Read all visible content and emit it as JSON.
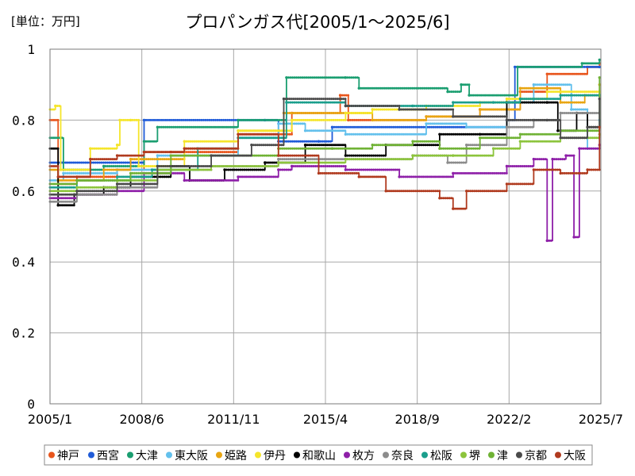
{
  "chart_data": {
    "type": "line",
    "title": "プロパンガス代[2005/1～2025/6]",
    "unit_label": "[単位：万円]",
    "xlabel": "",
    "ylabel": "",
    "ylim": [
      0,
      1
    ],
    "y_ticks": [
      "0",
      "0.2",
      "0.4",
      "0.6",
      "0.8",
      "1"
    ],
    "x_ticks": [
      "2005/1",
      "2008/6",
      "2011/11",
      "2015/4",
      "2018/9",
      "2022/2",
      "2025/7"
    ],
    "grid": true,
    "legend_position": "bottom",
    "series": [
      {
        "name": "神戸",
        "color": "#e8551c",
        "points": [
          [
            2005.0,
            0.8
          ],
          [
            2005.3,
            0.62
          ],
          [
            2006.0,
            0.64
          ],
          [
            2007.5,
            0.66
          ],
          [
            2008.5,
            0.71
          ],
          [
            2009.5,
            0.71
          ],
          [
            2012.0,
            0.76
          ],
          [
            2014.0,
            0.82
          ],
          [
            2015.8,
            0.87
          ],
          [
            2016.1,
            0.8
          ],
          [
            2019.0,
            0.81
          ],
          [
            2021.0,
            0.83
          ],
          [
            2022.5,
            0.88
          ],
          [
            2023.5,
            0.93
          ],
          [
            2025.0,
            0.95
          ],
          [
            2025.45,
            0.96
          ]
        ]
      },
      {
        "name": "西宮",
        "color": "#1f5bd8",
        "points": [
          [
            2005.0,
            0.68
          ],
          [
            2008.3,
            0.68
          ],
          [
            2008.5,
            0.8
          ],
          [
            2013.0,
            0.8
          ],
          [
            2013.5,
            0.74
          ],
          [
            2015.0,
            0.74
          ],
          [
            2015.5,
            0.78
          ],
          [
            2022.0,
            0.8
          ],
          [
            2022.3,
            0.95
          ],
          [
            2025.45,
            0.95
          ]
        ]
      },
      {
        "name": "大津",
        "color": "#1a9e70",
        "points": [
          [
            2005.0,
            0.75
          ],
          [
            2005.5,
            0.66
          ],
          [
            2007.0,
            0.67
          ],
          [
            2008.5,
            0.74
          ],
          [
            2009.0,
            0.78
          ],
          [
            2012.0,
            0.8
          ],
          [
            2013.8,
            0.92
          ],
          [
            2016.0,
            0.92
          ],
          [
            2016.5,
            0.89
          ],
          [
            2019.8,
            0.88
          ],
          [
            2020.3,
            0.9
          ],
          [
            2020.6,
            0.87
          ],
          [
            2022.4,
            0.95
          ],
          [
            2024.8,
            0.96
          ],
          [
            2025.45,
            0.97
          ]
        ]
      },
      {
        "name": "東大阪",
        "color": "#63c0ec",
        "points": [
          [
            2005.0,
            0.63
          ],
          [
            2005.5,
            0.65
          ],
          [
            2007.5,
            0.66
          ],
          [
            2009.0,
            0.7
          ],
          [
            2012.0,
            0.75
          ],
          [
            2013.5,
            0.79
          ],
          [
            2014.5,
            0.77
          ],
          [
            2016.0,
            0.76
          ],
          [
            2019.0,
            0.79
          ],
          [
            2020.5,
            0.78
          ],
          [
            2022.0,
            0.85
          ],
          [
            2023.0,
            0.9
          ],
          [
            2024.4,
            0.83
          ],
          [
            2025.0,
            0.72
          ],
          [
            2025.45,
            0.8
          ]
        ]
      },
      {
        "name": "姫路",
        "color": "#e8a512",
        "points": [
          [
            2005.0,
            0.66
          ],
          [
            2005.3,
            0.63
          ],
          [
            2007.0,
            0.66
          ],
          [
            2008.0,
            0.69
          ],
          [
            2010.0,
            0.72
          ],
          [
            2012.0,
            0.77
          ],
          [
            2013.7,
            0.82
          ],
          [
            2016.0,
            0.82
          ],
          [
            2017.0,
            0.8
          ],
          [
            2019.0,
            0.81
          ],
          [
            2021.0,
            0.83
          ],
          [
            2022.5,
            0.89
          ],
          [
            2024.0,
            0.85
          ],
          [
            2024.9,
            0.87
          ],
          [
            2025.45,
            0.9
          ]
        ]
      },
      {
        "name": "伊丹",
        "color": "#f5e52a",
        "points": [
          [
            2005.0,
            0.83
          ],
          [
            2005.2,
            0.84
          ],
          [
            2005.4,
            0.66
          ],
          [
            2006.5,
            0.72
          ],
          [
            2007.5,
            0.73
          ],
          [
            2007.6,
            0.8
          ],
          [
            2008.0,
            0.8
          ],
          [
            2008.3,
            0.67
          ],
          [
            2010.0,
            0.74
          ],
          [
            2012.0,
            0.77
          ],
          [
            2014.0,
            0.8
          ],
          [
            2016.0,
            0.82
          ],
          [
            2017.0,
            0.83
          ],
          [
            2019.0,
            0.84
          ],
          [
            2021.0,
            0.85
          ],
          [
            2022.0,
            0.86
          ],
          [
            2023.5,
            0.88
          ],
          [
            2025.45,
            0.88
          ]
        ]
      },
      {
        "name": "和歌山",
        "color": "#000000",
        "points": [
          [
            2005.0,
            0.72
          ],
          [
            2005.3,
            0.56
          ],
          [
            2005.9,
            0.59
          ],
          [
            2007.0,
            0.61
          ],
          [
            2008.0,
            0.64
          ],
          [
            2009.5,
            0.67
          ],
          [
            2010.2,
            0.63
          ],
          [
            2011.5,
            0.66
          ],
          [
            2013.0,
            0.68
          ],
          [
            2014.5,
            0.73
          ],
          [
            2016.0,
            0.7
          ],
          [
            2017.5,
            0.73
          ],
          [
            2019.5,
            0.76
          ],
          [
            2021.0,
            0.76
          ],
          [
            2022.0,
            0.85
          ],
          [
            2023.5,
            0.85
          ],
          [
            2023.9,
            0.77
          ],
          [
            2024.6,
            0.82
          ],
          [
            2025.0,
            0.78
          ],
          [
            2025.45,
            0.87
          ]
        ]
      },
      {
        "name": "枚方",
        "color": "#8e1fa8",
        "points": [
          [
            2005.0,
            0.58
          ],
          [
            2006.0,
            0.59
          ],
          [
            2007.5,
            0.6
          ],
          [
            2008.5,
            0.65
          ],
          [
            2010.0,
            0.63
          ],
          [
            2012.0,
            0.64
          ],
          [
            2013.5,
            0.66
          ],
          [
            2014.0,
            0.67
          ],
          [
            2016.0,
            0.66
          ],
          [
            2018.0,
            0.64
          ],
          [
            2020.0,
            0.65
          ],
          [
            2022.0,
            0.67
          ],
          [
            2023.0,
            0.69
          ],
          [
            2023.5,
            0.46
          ],
          [
            2023.7,
            0.69
          ],
          [
            2024.2,
            0.7
          ],
          [
            2024.5,
            0.47
          ],
          [
            2024.7,
            0.72
          ],
          [
            2025.45,
            0.73
          ]
        ]
      },
      {
        "name": "奈良",
        "color": "#8c8c8c",
        "points": [
          [
            2005.0,
            0.57
          ],
          [
            2006.0,
            0.59
          ],
          [
            2007.5,
            0.61
          ],
          [
            2009.0,
            0.66
          ],
          [
            2011.0,
            0.67
          ],
          [
            2013.5,
            0.69
          ],
          [
            2016.0,
            0.69
          ],
          [
            2018.5,
            0.7
          ],
          [
            2019.8,
            0.68
          ],
          [
            2020.5,
            0.73
          ],
          [
            2022.0,
            0.78
          ],
          [
            2023.0,
            0.8
          ],
          [
            2024.0,
            0.82
          ],
          [
            2025.45,
            0.82
          ]
        ]
      },
      {
        "name": "松阪",
        "color": "#1a9e8c",
        "points": [
          [
            2005.0,
            0.61
          ],
          [
            2006.0,
            0.63
          ],
          [
            2007.5,
            0.64
          ],
          [
            2008.8,
            0.66
          ],
          [
            2010.5,
            0.72
          ],
          [
            2012.0,
            0.75
          ],
          [
            2013.8,
            0.85
          ],
          [
            2016.0,
            0.84
          ],
          [
            2018.5,
            0.84
          ],
          [
            2020.0,
            0.85
          ],
          [
            2021.5,
            0.85
          ],
          [
            2022.5,
            0.86
          ],
          [
            2024.0,
            0.87
          ],
          [
            2025.45,
            0.87
          ]
        ]
      },
      {
        "name": "堺",
        "color": "#8cc43c",
        "points": [
          [
            2005.0,
            0.6
          ],
          [
            2006.0,
            0.61
          ],
          [
            2007.5,
            0.63
          ],
          [
            2009.0,
            0.66
          ],
          [
            2011.0,
            0.67
          ],
          [
            2013.5,
            0.68
          ],
          [
            2016.0,
            0.69
          ],
          [
            2018.5,
            0.7
          ],
          [
            2020.0,
            0.7
          ],
          [
            2021.5,
            0.72
          ],
          [
            2022.5,
            0.74
          ],
          [
            2024.0,
            0.75
          ],
          [
            2025.45,
            0.76
          ]
        ]
      },
      {
        "name": "津",
        "color": "#6fb234",
        "points": [
          [
            2005.0,
            0.62
          ],
          [
            2006.0,
            0.63
          ],
          [
            2008.0,
            0.65
          ],
          [
            2009.5,
            0.7
          ],
          [
            2011.0,
            0.7
          ],
          [
            2013.5,
            0.72
          ],
          [
            2015.5,
            0.72
          ],
          [
            2017.0,
            0.73
          ],
          [
            2018.5,
            0.74
          ],
          [
            2019.5,
            0.72
          ],
          [
            2021.0,
            0.75
          ],
          [
            2022.5,
            0.76
          ],
          [
            2024.0,
            0.77
          ],
          [
            2025.45,
            0.92
          ]
        ]
      },
      {
        "name": "京都",
        "color": "#4a4a4a",
        "points": [
          [
            2005.0,
            0.59
          ],
          [
            2006.0,
            0.6
          ],
          [
            2007.5,
            0.62
          ],
          [
            2009.0,
            0.67
          ],
          [
            2011.0,
            0.7
          ],
          [
            2012.5,
            0.73
          ],
          [
            2013.7,
            0.86
          ],
          [
            2016.0,
            0.84
          ],
          [
            2018.0,
            0.83
          ],
          [
            2020.0,
            0.81
          ],
          [
            2022.0,
            0.8
          ],
          [
            2023.5,
            0.8
          ],
          [
            2024.0,
            0.75
          ],
          [
            2025.0,
            0.78
          ],
          [
            2025.45,
            0.86
          ]
        ]
      },
      {
        "name": "大阪",
        "color": "#b03a1e",
        "points": [
          [
            2005.0,
            0.67
          ],
          [
            2005.3,
            0.64
          ],
          [
            2006.5,
            0.69
          ],
          [
            2007.5,
            0.7
          ],
          [
            2008.5,
            0.71
          ],
          [
            2010.0,
            0.72
          ],
          [
            2012.0,
            0.76
          ],
          [
            2013.5,
            0.7
          ],
          [
            2015.0,
            0.65
          ],
          [
            2016.5,
            0.64
          ],
          [
            2017.5,
            0.6
          ],
          [
            2019.5,
            0.58
          ],
          [
            2020.0,
            0.55
          ],
          [
            2020.5,
            0.6
          ],
          [
            2022.0,
            0.62
          ],
          [
            2023.0,
            0.66
          ],
          [
            2024.0,
            0.65
          ],
          [
            2025.0,
            0.66
          ],
          [
            2025.45,
            0.78
          ]
        ]
      }
    ]
  }
}
